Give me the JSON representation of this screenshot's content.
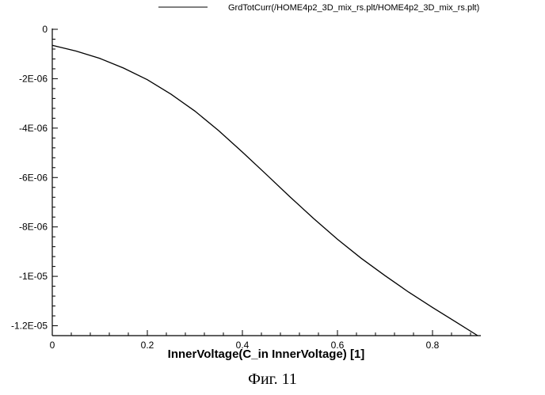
{
  "chart_data": {
    "type": "line",
    "title": "",
    "xlabel": "InnerVoltage(C_in InnerVoltage) [1]",
    "ylabel": "",
    "xlim": [
      0,
      0.9
    ],
    "ylim": [
      -1.24e-05,
      0
    ],
    "grid": false,
    "legend_position": "top-right",
    "x_ticks": [
      0,
      0.2,
      0.4,
      0.6,
      0.8
    ],
    "x_tick_labels": [
      "0",
      "0.2",
      "0.4",
      "0.6",
      "0.8"
    ],
    "y_ticks": [
      0,
      -2e-06,
      -4e-06,
      -6e-06,
      -8e-06,
      -1e-05,
      -1.2e-05
    ],
    "y_tick_labels": [
      "0",
      "-2E-06",
      "-4E-06",
      "-6E-06",
      "-8E-06",
      "-1E-05",
      "-1.2E-05"
    ],
    "series": [
      {
        "name": "GrdTotCurr(/HOME4p2_3D_mix_rs.plt/HOME4p2_3D_mix_rs.plt)",
        "color": "#000000",
        "x": [
          0,
          0.05,
          0.1,
          0.15,
          0.2,
          0.25,
          0.3,
          0.35,
          0.4,
          0.45,
          0.5,
          0.55,
          0.6,
          0.65,
          0.7,
          0.75,
          0.8,
          0.85,
          0.895
        ],
        "y": [
          -6.5e-07,
          -8.8e-07,
          -1.18e-06,
          -1.57e-06,
          -2.04e-06,
          -2.63e-06,
          -3.31e-06,
          -4.1e-06,
          -4.97e-06,
          -5.87e-06,
          -6.78e-06,
          -7.66e-06,
          -8.5e-06,
          -9.27e-06,
          -9.97e-06,
          -1.064e-05,
          -1.126e-05,
          -1.186e-05,
          -1.24e-05
        ]
      }
    ]
  },
  "caption": "Фиг. 11"
}
